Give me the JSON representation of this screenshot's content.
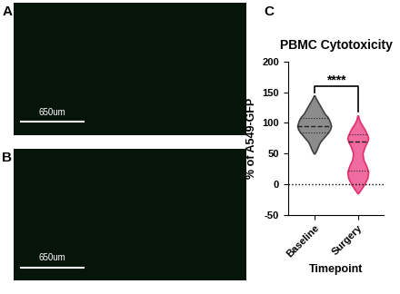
{
  "panels": [
    {
      "label": "A",
      "scale_bar": "650um"
    },
    {
      "label": "B",
      "scale_bar": "650um"
    }
  ],
  "chart_data": {
    "type": "violin",
    "panel_label": "C",
    "title": "PBMC Cytotoxicity",
    "x_label": "Timepoint",
    "y_label": "% of A549-GFP",
    "categories": [
      "Baseline",
      "Surgery"
    ],
    "colors": [
      "#8c8c8c",
      "#f06ba0"
    ],
    "edge_colors": [
      "#404040",
      "#e0306e"
    ],
    "violins": [
      {
        "y": [
          50,
          55,
          60,
          65,
          70,
          75,
          80,
          85,
          90,
          95,
          100,
          105,
          110,
          115,
          120,
          125,
          130,
          135,
          140,
          145
        ],
        "density": [
          0.03,
          0.12,
          0.2,
          0.27,
          0.37,
          0.52,
          0.67,
          0.82,
          0.92,
          0.97,
          0.92,
          0.86,
          0.76,
          0.6,
          0.5,
          0.4,
          0.3,
          0.2,
          0.1,
          0.02
        ],
        "median": 95,
        "quartiles": [
          84,
          108
        ]
      },
      {
        "y": [
          -15,
          -10,
          0,
          10,
          20,
          30,
          40,
          50,
          60,
          70,
          75,
          80,
          90,
          100,
          105,
          112
        ],
        "density": [
          0.02,
          0.15,
          0.38,
          0.55,
          0.6,
          0.48,
          0.32,
          0.27,
          0.38,
          0.55,
          0.6,
          0.55,
          0.38,
          0.16,
          0.08,
          0.02
        ],
        "median": 70,
        "quartiles": [
          22,
          82
        ]
      }
    ],
    "reference_line": 0,
    "bracket": {
      "text": "****",
      "y": 160,
      "ends": [
        150,
        118
      ]
    },
    "ylim": [
      -50,
      200
    ],
    "yticks": [
      -50,
      0,
      50,
      100,
      150,
      200
    ]
  }
}
